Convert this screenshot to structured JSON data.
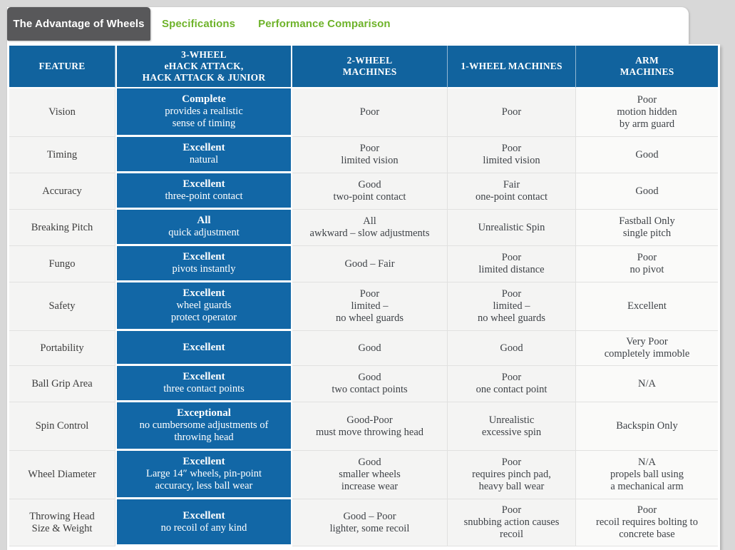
{
  "colors": {
    "header_blue": "#11639e",
    "cell_blue": "#1267a6",
    "tab_green": "#6eb32a",
    "tab_dark_bg": "#58585a",
    "row_bg": "#f4f4f3",
    "arm_col_bg": "#fafaf9",
    "page_bg": "#d8d8d8"
  },
  "tabs": [
    {
      "label": "The Advantage of Wheels",
      "active": true
    },
    {
      "label": "Specifications",
      "active": false
    },
    {
      "label": "Performance Comparison",
      "active": false
    }
  ],
  "table": {
    "columns": [
      {
        "id": "feature",
        "label": "FEATURE"
      },
      {
        "id": "three-wheel",
        "label": "3-WHEEL\neHACK ATTACK,\nHACK ATTACK & JUNIOR"
      },
      {
        "id": "two-wheel",
        "label": "2-WHEEL\nMACHINES"
      },
      {
        "id": "one-wheel",
        "label": "1-WHEEL MACHINES"
      },
      {
        "id": "arm",
        "label": "ARM\nMACHINES"
      }
    ],
    "rows": [
      {
        "feature": "Vision",
        "cells": [
          {
            "title": "Complete",
            "detail": "provides a realistic\nsense of timing"
          },
          {
            "title": "Poor",
            "detail": ""
          },
          {
            "title": "Poor",
            "detail": ""
          },
          {
            "title": "Poor",
            "detail": "motion hidden\nby arm guard"
          }
        ]
      },
      {
        "feature": "Timing",
        "cells": [
          {
            "title": "Excellent",
            "detail": "natural"
          },
          {
            "title": "Poor",
            "detail": "limited vision"
          },
          {
            "title": "Poor",
            "detail": "limited vision"
          },
          {
            "title": "Good",
            "detail": ""
          }
        ]
      },
      {
        "feature": "Accuracy",
        "cells": [
          {
            "title": "Excellent",
            "detail": "three-point contact"
          },
          {
            "title": "Good",
            "detail": "two-point contact"
          },
          {
            "title": "Fair",
            "detail": "one-point contact"
          },
          {
            "title": "Good",
            "detail": ""
          }
        ]
      },
      {
        "feature": "Breaking Pitch",
        "cells": [
          {
            "title": "All",
            "detail": "quick adjustment"
          },
          {
            "title": "All",
            "detail": "awkward – slow adjustments"
          },
          {
            "title": "Unrealistic Spin",
            "detail": ""
          },
          {
            "title": "Fastball Only",
            "detail": "single pitch"
          }
        ]
      },
      {
        "feature": "Fungo",
        "cells": [
          {
            "title": "Excellent",
            "detail": "pivots instantly"
          },
          {
            "title": "Good – Fair",
            "detail": ""
          },
          {
            "title": "Poor",
            "detail": "limited distance"
          },
          {
            "title": "Poor",
            "detail": "no pivot"
          }
        ]
      },
      {
        "feature": "Safety",
        "cells": [
          {
            "title": "Excellent",
            "detail": "wheel guards\nprotect operator"
          },
          {
            "title": "Poor",
            "detail": "limited –\nno wheel guards"
          },
          {
            "title": "Poor",
            "detail": "limited –\nno wheel guards"
          },
          {
            "title": "Excellent",
            "detail": ""
          }
        ]
      },
      {
        "feature": "Portability",
        "cells": [
          {
            "title": "Excellent",
            "detail": ""
          },
          {
            "title": "Good",
            "detail": ""
          },
          {
            "title": "Good",
            "detail": ""
          },
          {
            "title": "Very Poor",
            "detail": "completely immoble"
          }
        ]
      },
      {
        "feature": "Ball Grip Area",
        "cells": [
          {
            "title": "Excellent",
            "detail": "three contact points"
          },
          {
            "title": "Good",
            "detail": "two contact points"
          },
          {
            "title": "Poor",
            "detail": "one contact point"
          },
          {
            "title": "N/A",
            "detail": ""
          }
        ]
      },
      {
        "feature": "Spin Control",
        "cells": [
          {
            "title": "Exceptional",
            "detail": "no cumbersome adjustments of\nthrowing head"
          },
          {
            "title": "Good-Poor",
            "detail": "must move throwing head"
          },
          {
            "title": "Unrealistic",
            "detail": "excessive spin"
          },
          {
            "title": "Backspin Only",
            "detail": ""
          }
        ]
      },
      {
        "feature": "Wheel Diameter",
        "cells": [
          {
            "title": "Excellent",
            "detail": "Large 14″ wheels, pin-point\naccuracy, less ball wear"
          },
          {
            "title": "Good",
            "detail": "smaller wheels\nincrease wear"
          },
          {
            "title": "Poor",
            "detail": "requires pinch pad,\nheavy ball wear"
          },
          {
            "title": "N/A",
            "detail": "propels ball using\na mechanical arm"
          }
        ]
      },
      {
        "feature": "Throwing Head\nSize & Weight",
        "cells": [
          {
            "title": "Excellent",
            "detail": "no recoil of any kind"
          },
          {
            "title": "Good – Poor",
            "detail": "lighter, some recoil"
          },
          {
            "title": "Poor",
            "detail": "snubbing action causes\nrecoil"
          },
          {
            "title": "Poor",
            "detail": "recoil requires bolting to\nconcrete base"
          }
        ]
      }
    ]
  }
}
